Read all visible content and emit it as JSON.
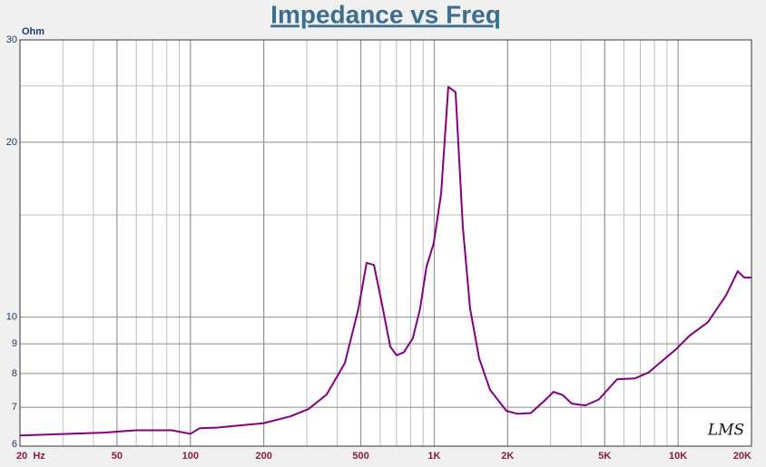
{
  "chart_data": {
    "type": "line",
    "title": "Impedance vs Freq",
    "y_label": "Ohm",
    "watermark": "LMS",
    "log_x": true,
    "log_y": true,
    "grid": true,
    "x": [
      20,
      44,
      60,
      84,
      100,
      109,
      130,
      199,
      257,
      305,
      362,
      430,
      489,
      528,
      566,
      606,
      660,
      701,
      750,
      817,
      875,
      929,
      995,
      1067,
      1142,
      1223,
      1310,
      1403,
      1528,
      1694,
      1977,
      2190,
      2490,
      2830,
      3083,
      3360,
      3665,
      4165,
      4735,
      5620,
      6670,
      7590,
      9810,
      11160,
      13240,
      15720,
      17570,
      18660,
      20000
    ],
    "series": [
      {
        "name": "Impedance",
        "color": "#800080",
        "values": [
          6.26,
          6.33,
          6.39,
          6.39,
          6.3,
          6.44,
          6.46,
          6.57,
          6.75,
          6.95,
          7.36,
          8.34,
          10.35,
          12.4,
          12.3,
          10.7,
          8.9,
          8.6,
          8.7,
          9.2,
          10.35,
          12.2,
          13.4,
          16.3,
          24.9,
          24.4,
          14.3,
          10.35,
          8.5,
          7.5,
          6.9,
          6.82,
          6.84,
          7.18,
          7.44,
          7.35,
          7.1,
          7.05,
          7.22,
          7.82,
          7.85,
          8.04,
          8.81,
          9.3,
          9.8,
          10.9,
          12.0,
          11.7,
          11.7
        ]
      }
    ],
    "xlim": [
      20,
      20000
    ],
    "xticks": [
      {
        "value": 20,
        "label": "20  Hz"
      },
      50,
      100,
      200,
      500,
      {
        "value": 1000,
        "label": "1K"
      },
      {
        "value": 2000,
        "label": "2K"
      },
      {
        "value": 5000,
        "label": "5K"
      },
      {
        "value": 10000,
        "label": "10K"
      },
      {
        "value": 20000,
        "label": "20K"
      }
    ],
    "ylim": [
      6,
      30
    ],
    "yticks": [
      6,
      7,
      8,
      9,
      10,
      20,
      30
    ],
    "y_minor_grid": [
      15,
      25
    ]
  }
}
